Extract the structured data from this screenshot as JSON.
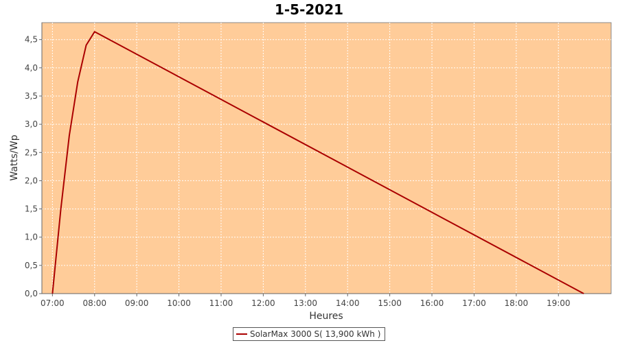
{
  "chart_data": {
    "type": "line",
    "title": "1-5-2021",
    "xlabel": "Heures",
    "ylabel": "Watts/Wp",
    "xlim": [
      6.75,
      20.25
    ],
    "ylim": [
      0,
      4.8
    ],
    "x_ticks": [
      {
        "value": 7,
        "label": "07:00"
      },
      {
        "value": 8,
        "label": "08:00"
      },
      {
        "value": 9,
        "label": "09:00"
      },
      {
        "value": 10,
        "label": "10:00"
      },
      {
        "value": 11,
        "label": "11:00"
      },
      {
        "value": 12,
        "label": "12:00"
      },
      {
        "value": 13,
        "label": "13:00"
      },
      {
        "value": 14,
        "label": "14:00"
      },
      {
        "value": 15,
        "label": "15:00"
      },
      {
        "value": 16,
        "label": "16:00"
      },
      {
        "value": 17,
        "label": "17:00"
      },
      {
        "value": 18,
        "label": "18:00"
      },
      {
        "value": 19,
        "label": "19:00"
      }
    ],
    "y_ticks": [
      {
        "value": 0,
        "label": "0,0"
      },
      {
        "value": 0.5,
        "label": "0,5"
      },
      {
        "value": 1,
        "label": "1,0"
      },
      {
        "value": 1.5,
        "label": "1,5"
      },
      {
        "value": 2,
        "label": "2,0"
      },
      {
        "value": 2.5,
        "label": "2,5"
      },
      {
        "value": 3,
        "label": "3,0"
      },
      {
        "value": 3.5,
        "label": "3,5"
      },
      {
        "value": 4,
        "label": "4,0"
      },
      {
        "value": 4.5,
        "label": "4,5"
      }
    ],
    "grid": true,
    "legend_position": "bottom-center",
    "series": [
      {
        "name": "SolarMax 3000 S( 13,900 kWh )",
        "color": "#aa0000",
        "x": [
          7.0,
          7.2,
          7.4,
          7.6,
          7.8,
          8.0,
          19.6
        ],
        "y": [
          0.0,
          1.5,
          2.8,
          3.75,
          4.4,
          4.64,
          0.0
        ]
      }
    ],
    "plot_background": "#ffcc99"
  }
}
